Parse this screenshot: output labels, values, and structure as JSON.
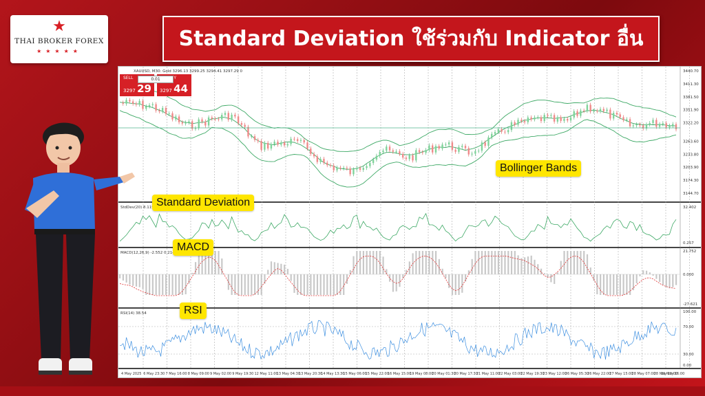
{
  "brand": {
    "name": "THAI BROKER FOREX",
    "star_icon": "star-icon"
  },
  "headline": "Standard Deviation ใช้ร่วมกับ Indicator อื่น",
  "chart": {
    "symbol_line": "XAUUSD, M30: Gold  3296.13 3299.25 3294.41 3297.29  0",
    "trade": {
      "sell_label": "SELL",
      "buy_label": "BUY",
      "lot": "0.01",
      "sell_prefix": "3297",
      "sell_big": "29",
      "buy_prefix": "3297",
      "buy_big": "44"
    },
    "price_axis": [
      "3440.70",
      "3411.30",
      "3381.50",
      "3351.90",
      "3322.20",
      "3263.60",
      "3233.80",
      "3203.90",
      "3174.30",
      "3144.70"
    ],
    "stddev_header": "StdDev(20) 8.119",
    "stddev_axis": [
      "32.402",
      "0.257"
    ],
    "macd_header": "MACD(12,26,9) -2.552 0.214",
    "macd_axis": [
      "21.752",
      "0.000",
      "-27.621"
    ],
    "rsi_header": "RSI(14) 38.54",
    "rsi_axis": [
      "100.00",
      "70.00",
      "30.00",
      "0.00"
    ],
    "time_axis": [
      "4 May 2025",
      "6 May 23:30",
      "7 May 16:00",
      "8 May 09:00",
      "9 May 02:00",
      "9 May 19:30",
      "12 May 11:00",
      "13 May 04:30",
      "13 May 20:30",
      "14 May 13:30",
      "15 May 06:00",
      "15 May 22:00",
      "16 May 15:00",
      "19 May 08:00",
      "20 May 01:30",
      "20 May 17:30",
      "21 May 11:00",
      "22 May 03:00",
      "22 May 19:30",
      "23 May 12:00",
      "26 May 05:30",
      "26 May 22:00",
      "27 May 15:00",
      "28 May 07:00",
      "28 May 23:00",
      "29 May 16:00"
    ]
  },
  "callouts": {
    "bollinger": "Bollinger Bands",
    "stddev": "Standard Deviation",
    "macd": "MACD",
    "rsi": "RSI"
  },
  "colors": {
    "accent_red": "#c4161c",
    "callout_yellow": "#ffe600",
    "band_green": "#3ca864"
  }
}
